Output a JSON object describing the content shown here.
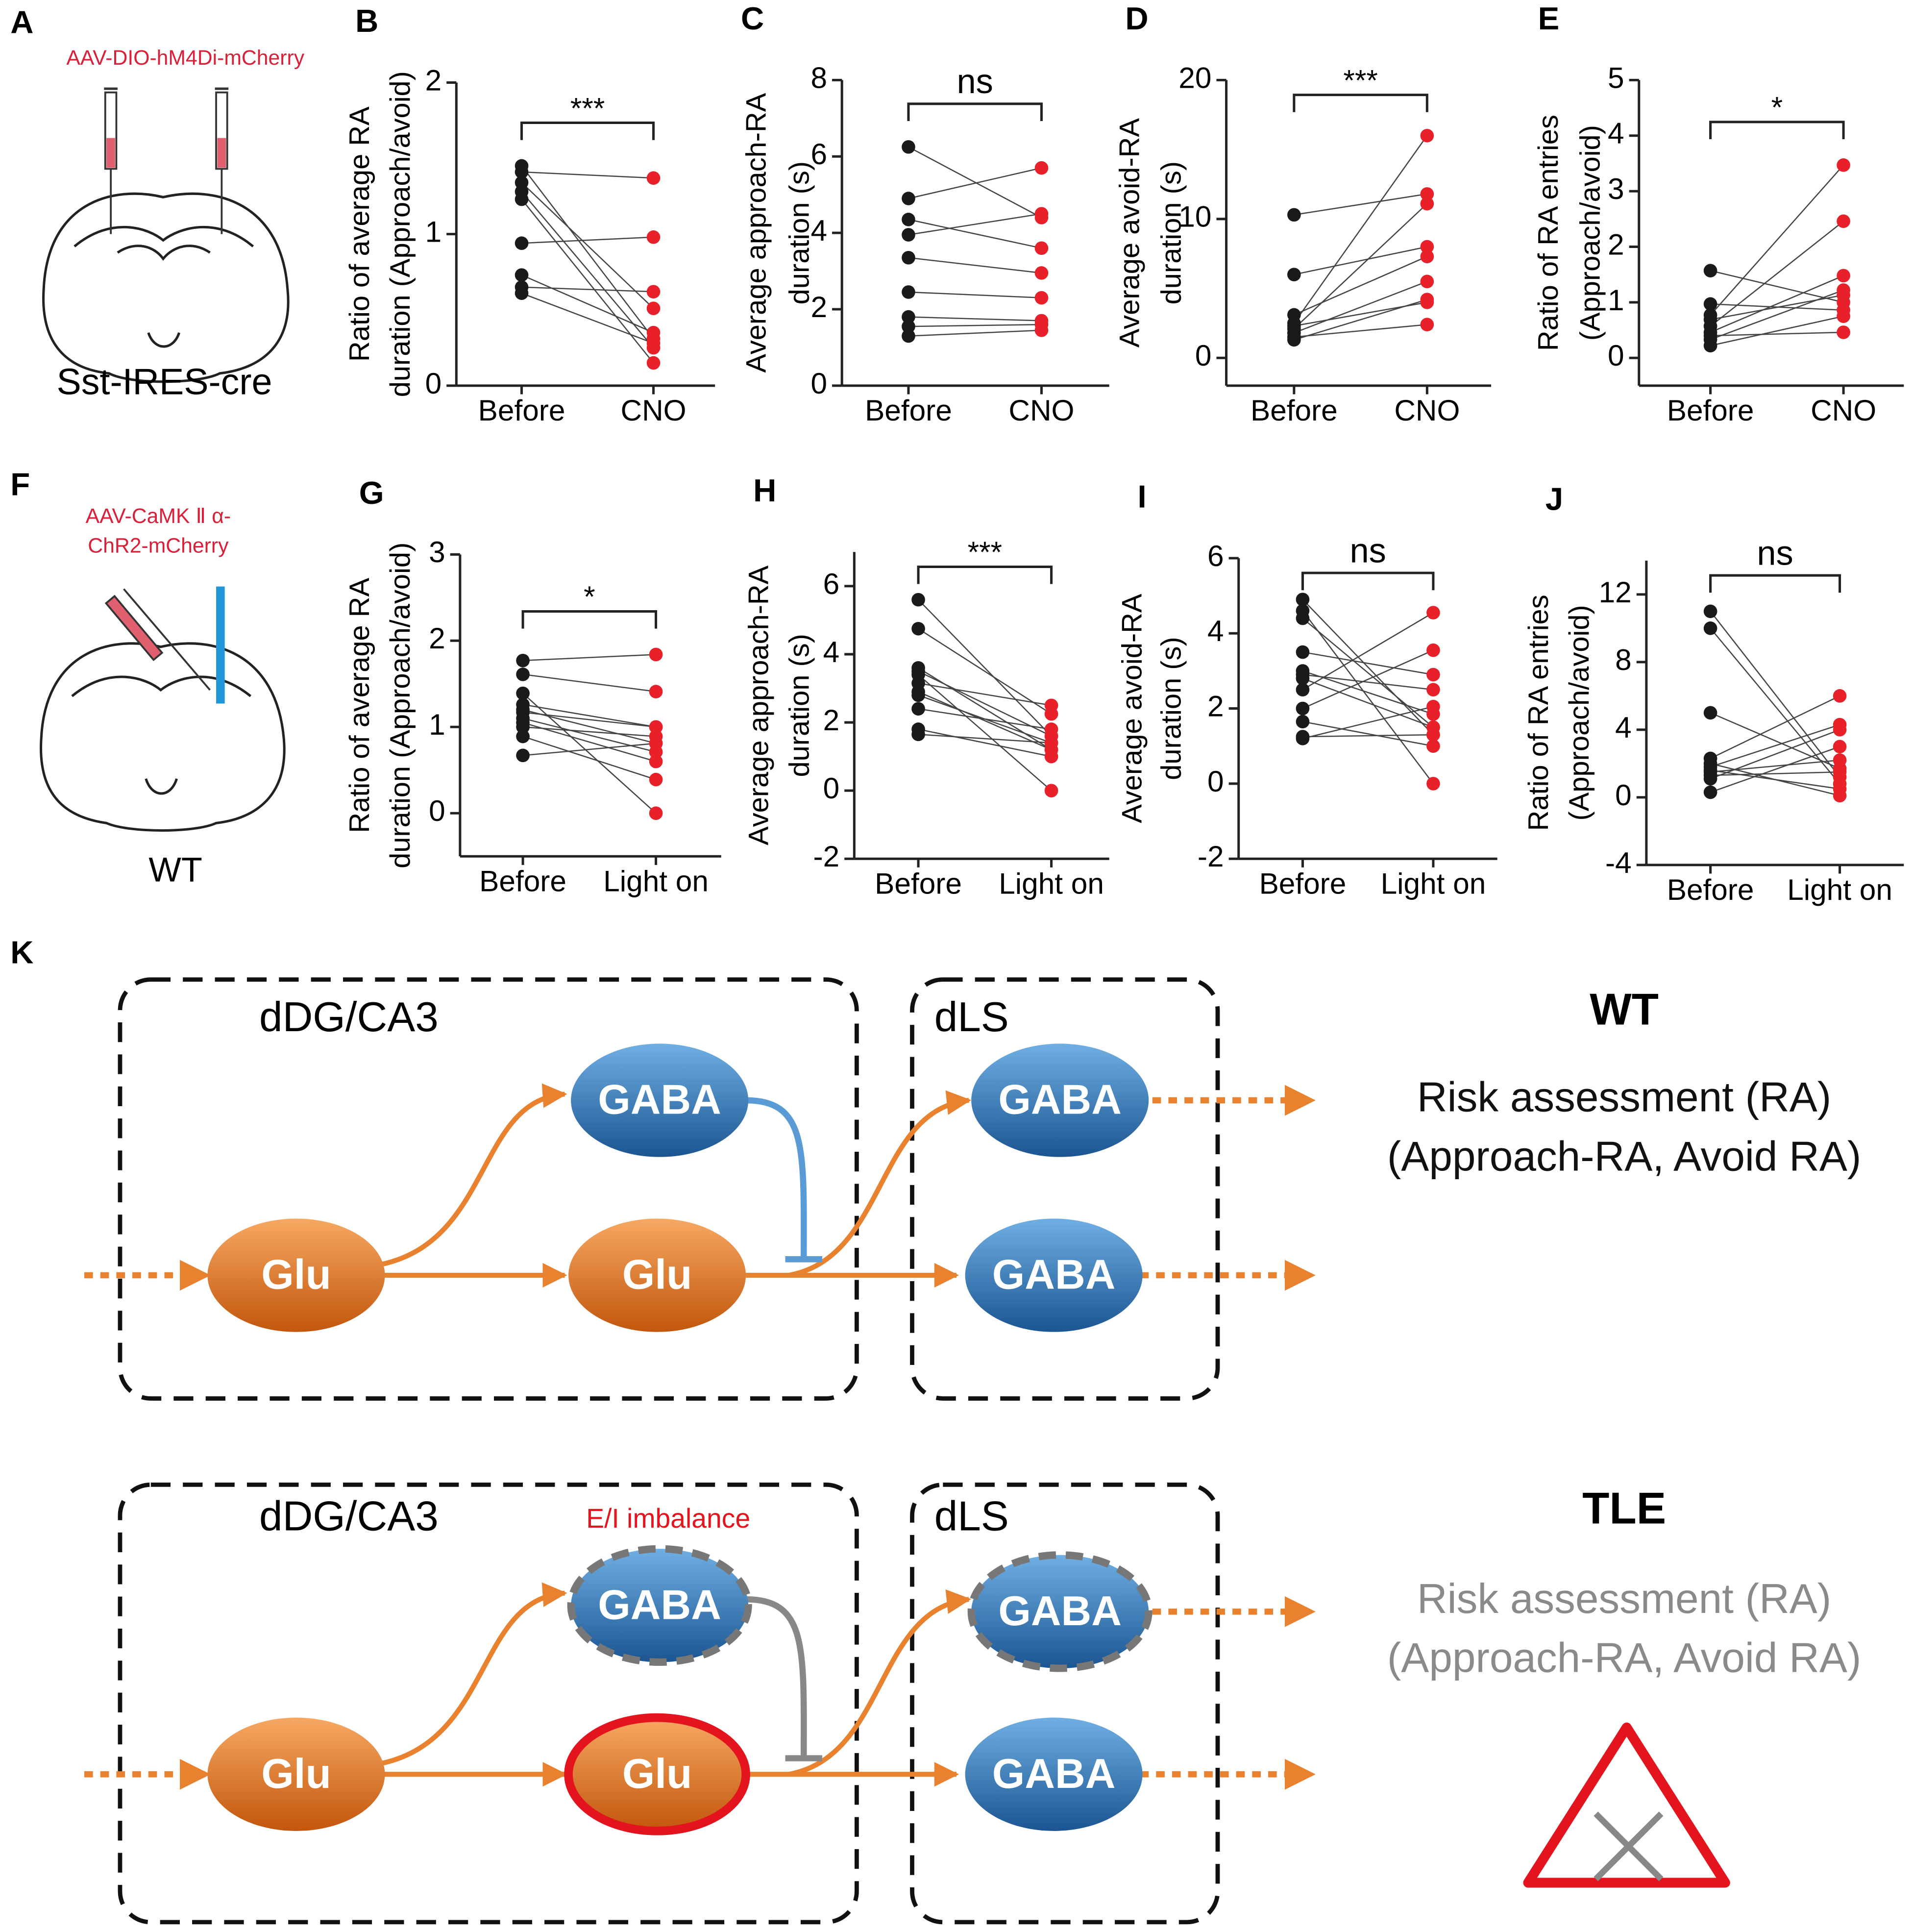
{
  "panels": {
    "A": {
      "label": "A",
      "virus": [
        "AAV-DIO-hM4Di-mCherry"
      ],
      "mouse": "Sst-IRES-cre"
    },
    "F": {
      "label": "F",
      "virus": [
        "AAV-CaMK Ⅱ α-",
        "ChR2-mCherry"
      ],
      "mouse": "WT"
    },
    "K": {
      "label": "K"
    }
  },
  "chart_data": [
    {
      "type": "paired",
      "panel": "B",
      "ylabel": [
        "Ratio of average RA",
        "duration (Approach/avoid)"
      ],
      "categories": [
        "Before",
        "CNO"
      ],
      "colors": [
        "#1a1a1a",
        "#e8202a"
      ],
      "ylim": [
        0,
        2
      ],
      "yticks": [
        0,
        1,
        2
      ],
      "annotation": "***",
      "pairs": [
        [
          1.45,
          0.31
        ],
        [
          1.41,
          1.37
        ],
        [
          1.34,
          0.51
        ],
        [
          1.28,
          0.25
        ],
        [
          1.23,
          0.15
        ],
        [
          0.94,
          0.98
        ],
        [
          0.73,
          0.35
        ],
        [
          0.65,
          0.62
        ],
        [
          0.61,
          0.28
        ]
      ]
    },
    {
      "type": "paired",
      "panel": "C",
      "ylabel": [
        "Average approach-RA",
        "duration (s)"
      ],
      "categories": [
        "Before",
        "CNO"
      ],
      "colors": [
        "#1a1a1a",
        "#e8202a"
      ],
      "ylim": [
        0,
        8
      ],
      "yticks": [
        0,
        2,
        4,
        6,
        8
      ],
      "annotation": "ns",
      "pairs": [
        [
          6.25,
          4.4
        ],
        [
          4.9,
          5.7
        ],
        [
          4.35,
          3.6
        ],
        [
          3.95,
          4.5
        ],
        [
          3.35,
          2.95
        ],
        [
          2.45,
          2.3
        ],
        [
          1.8,
          1.7
        ],
        [
          1.55,
          1.6
        ],
        [
          1.3,
          1.45
        ]
      ]
    },
    {
      "type": "paired",
      "panel": "D",
      "ylabel": [
        "Average avoid-RA",
        "duration (s)"
      ],
      "categories": [
        "Before",
        "CNO"
      ],
      "colors": [
        "#1a1a1a",
        "#e8202a"
      ],
      "ylim": [
        -2,
        20
      ],
      "yticks": [
        0,
        10,
        20
      ],
      "annotation": "***",
      "pairs": [
        [
          10.3,
          11.8
        ],
        [
          6.0,
          8.0
        ],
        [
          3.1,
          7.3
        ],
        [
          2.5,
          16
        ],
        [
          2.1,
          11.1
        ],
        [
          1.8,
          5.5
        ],
        [
          1.3,
          4.2
        ],
        [
          2.3,
          4.0
        ],
        [
          1.5,
          2.4
        ]
      ]
    },
    {
      "type": "paired",
      "panel": "E",
      "ylabel": [
        "Ratio of RA entries",
        "(Approach/avoid)"
      ],
      "categories": [
        "Before",
        "CNO"
      ],
      "colors": [
        "#1a1a1a",
        "#e8202a"
      ],
      "ylim": [
        -0.5,
        5
      ],
      "yticks": [
        0,
        1,
        2,
        3,
        4,
        5
      ],
      "annotation": "*",
      "pairs": [
        [
          1.57,
          1.0
        ],
        [
          0.97,
          0.86
        ],
        [
          0.77,
          3.47
        ],
        [
          0.69,
          1.13
        ],
        [
          0.57,
          2.46
        ],
        [
          0.46,
          1.48
        ],
        [
          0.33,
          1.22
        ],
        [
          0.22,
          0.75
        ],
        [
          0.4,
          0.46
        ]
      ]
    },
    {
      "type": "paired",
      "panel": "G",
      "ylabel": [
        "Ratio of average RA",
        "duration (Approach/avoid)"
      ],
      "categories": [
        "Before",
        "Light on"
      ],
      "colors": [
        "#1a1a1a",
        "#e8202a"
      ],
      "ylim": [
        -0.5,
        3
      ],
      "yticks": [
        0,
        1,
        2,
        3
      ],
      "annotation": "*",
      "pairs": [
        [
          1.77,
          1.84
        ],
        [
          1.61,
          1.41
        ],
        [
          1.39,
          0.0
        ],
        [
          1.26,
          1.0
        ],
        [
          1.2,
          0.81
        ],
        [
          1.17,
          1.0
        ],
        [
          1.1,
          0.71
        ],
        [
          1.05,
          0.6
        ],
        [
          1.0,
          0.89
        ],
        [
          0.89,
          0.39
        ],
        [
          0.67,
          0.81
        ]
      ]
    },
    {
      "type": "paired",
      "panel": "H",
      "ylabel": [
        "Average approach-RA",
        "duration (s)"
      ],
      "categories": [
        "Before",
        "Light on"
      ],
      "colors": [
        "#1a1a1a",
        "#e8202a"
      ],
      "ylim": [
        -2,
        7
      ],
      "yticks": [
        -2,
        0,
        2,
        4,
        6
      ],
      "annotation": "***",
      "pairs": [
        [
          5.6,
          1.6
        ],
        [
          4.75,
          2.25
        ],
        [
          3.6,
          1.2
        ],
        [
          3.4,
          0.0
        ],
        [
          3.15,
          2.5
        ],
        [
          2.8,
          1.4
        ],
        [
          2.4,
          1.8
        ],
        [
          1.8,
          1.0
        ],
        [
          1.65,
          1.4
        ],
        [
          2.9,
          1.2
        ],
        [
          3.5,
          1.6
        ]
      ]
    },
    {
      "type": "paired",
      "panel": "I",
      "ylabel": [
        "Average avoid-RA",
        "duration (s)"
      ],
      "categories": [
        "Before",
        "Light on"
      ],
      "colors": [
        "#1a1a1a",
        "#e8202a"
      ],
      "ylim": [
        -2,
        6
      ],
      "yticks": [
        -2,
        0,
        2,
        4,
        6
      ],
      "annotation": "ns",
      "pairs": [
        [
          4.9,
          1.3
        ],
        [
          4.6,
          0.0
        ],
        [
          4.4,
          1.5
        ],
        [
          3.5,
          2.9
        ],
        [
          3.0,
          1.85
        ],
        [
          2.9,
          2.5
        ],
        [
          2.5,
          4.55
        ],
        [
          2.0,
          3.55
        ],
        [
          1.65,
          1.0
        ],
        [
          1.2,
          2.05
        ],
        [
          2.8,
          1.5
        ],
        [
          1.25,
          1.3
        ]
      ]
    },
    {
      "type": "paired",
      "panel": "J",
      "ylabel": [
        "Ratio of RA entries",
        "(Approach/avoid)"
      ],
      "categories": [
        "Before",
        "Light on"
      ],
      "colors": [
        "#1a1a1a",
        "#e8202a"
      ],
      "ylim": [
        -4,
        14
      ],
      "yticks": [
        -4,
        0,
        4,
        8,
        12
      ],
      "annotation": "ns",
      "pairs": [
        [
          11,
          1.2
        ],
        [
          10,
          0.8
        ],
        [
          5,
          1.7
        ],
        [
          2.3,
          6
        ],
        [
          1.8,
          4.3
        ],
        [
          1.5,
          2.2
        ],
        [
          1.1,
          4.0
        ],
        [
          0.3,
          3
        ],
        [
          1.3,
          1.5
        ],
        [
          2.0,
          0.1
        ],
        [
          1.6,
          0.5
        ]
      ]
    }
  ],
  "diagram": {
    "rows": [
      {
        "title": "WT",
        "region1": "dDG/CA3",
        "region2": "dLS",
        "nodes": [
          "Glu",
          "Glu",
          "GABA",
          "GABA",
          "GABA"
        ],
        "outcome": [
          "Risk assessment (RA)",
          "(Approach-RA, Avoid RA)"
        ]
      },
      {
        "title": "TLE",
        "note": "E/I imbalance",
        "region1": "dDG/CA3",
        "region2": "dLS",
        "nodes": [
          "Glu",
          "Glu",
          "GABA",
          "GABA",
          "GABA"
        ],
        "outcome": [
          "Risk assessment (RA)",
          "(Approach-RA, Avoid RA)"
        ]
      }
    ]
  }
}
